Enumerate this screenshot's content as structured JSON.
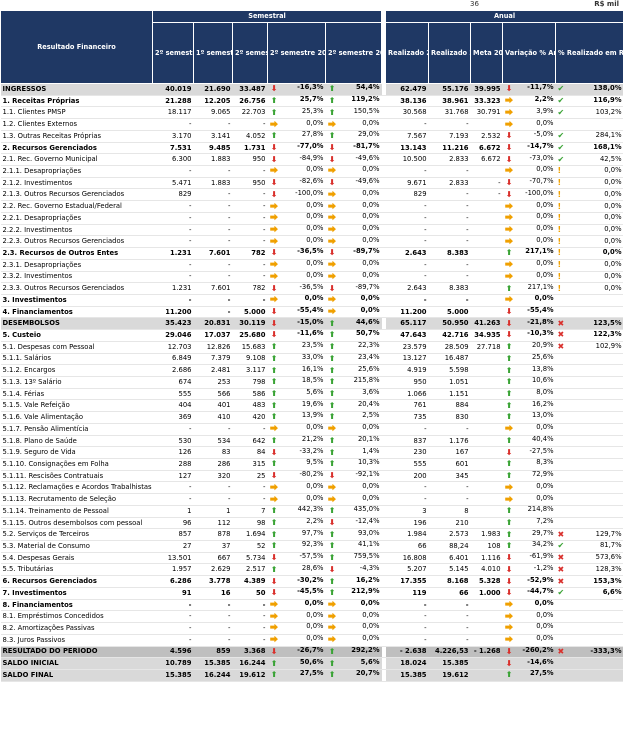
{
  "top": {
    "marker": "36",
    "unit": "R$ mil"
  },
  "header": {
    "name_col": "Resultado Financeiro",
    "group_sem": "Semestral",
    "group_anual": "Anual",
    "cols": [
      "2º semestre 2015",
      "1º semestre 2016",
      "2º semestre 2016",
      "2º semestre 2016 vs 2º semestre 2015",
      "2º semestre 2016 vs 1º semestre 2016",
      "Realizado 2015",
      "Realizado 2016",
      "Meta 2016",
      "Variação % Anual",
      "% Realizado em Relação à Meta"
    ]
  },
  "rows": [
    {
      "name": "INGRESSOS",
      "s1": "40.019",
      "s2": "21.690",
      "s3": "33.487",
      "a1": "down",
      "v1": "-16,3%",
      "a2": "up",
      "v2": "54,4%",
      "r15": "62.479",
      "r16": "55.176",
      "meta": "39.995",
      "a3": "down",
      "v3": "-11,7%",
      "mk": "ok",
      "pm": "138,0%",
      "style": "band"
    },
    {
      "name": "1. Receitas Próprias",
      "s1": "21.288",
      "s2": "12.205",
      "s3": "26.756",
      "a1": "up",
      "v1": "25,7%",
      "a2": "up",
      "v2": "119,2%",
      "r15": "38.136",
      "r16": "38.961",
      "meta": "33.323",
      "a3": "right",
      "v3": "2,2%",
      "mk": "ok",
      "pm": "116,9%",
      "style": "bold"
    },
    {
      "name": "1.1. Clientes PMSP",
      "s1": "18.117",
      "s2": "9.065",
      "s3": "22.703",
      "a1": "up",
      "v1": "25,3%",
      "a2": "up",
      "v2": "150,5%",
      "r15": "30.568",
      "r16": "31.768",
      "meta": "30.791",
      "a3": "right",
      "v3": "3,9%",
      "mk": "ok",
      "pm": "103,2%",
      "style": ""
    },
    {
      "name": "1.2. Clientes Externos",
      "s1": "-",
      "s2": "-",
      "s3": "-",
      "a1": "right",
      "v1": "0,0%",
      "a2": "right",
      "v2": "0,0%",
      "r15": "-",
      "r16": "-",
      "meta": "",
      "a3": "right",
      "v3": "0,0%",
      "mk": "",
      "pm": "",
      "style": ""
    },
    {
      "name": "1.3. Outras Receitas Próprias",
      "s1": "3.170",
      "s2": "3.141",
      "s3": "4.052",
      "a1": "up",
      "v1": "27,8%",
      "a2": "up",
      "v2": "29,0%",
      "r15": "7.567",
      "r16": "7.193",
      "meta": "2.532",
      "a3": "down",
      "v3": "-5,0%",
      "mk": "ok",
      "pm": "284,1%",
      "style": ""
    },
    {
      "name": "2. Recursos Gerenciados",
      "s1": "7.531",
      "s2": "9.485",
      "s3": "1.731",
      "a1": "down",
      "v1": "-77,0%",
      "a2": "down",
      "v2": "-81,7%",
      "r15": "13.143",
      "r16": "11.216",
      "meta": "6.672",
      "a3": "down",
      "v3": "-14,7%",
      "mk": "ok",
      "pm": "168,1%",
      "style": "bold"
    },
    {
      "name": "2.1. Rec. Governo Municipal",
      "s1": "6.300",
      "s2": "1.883",
      "s3": "950",
      "a1": "down",
      "v1": "-84,9%",
      "a2": "down",
      "v2": "-49,6%",
      "r15": "10.500",
      "r16": "2.833",
      "meta": "6.672",
      "a3": "down",
      "v3": "-73,0%",
      "mk": "ok",
      "pm": "42,5%",
      "style": ""
    },
    {
      "name": "2.1.1. Desapropriações",
      "s1": "-",
      "s2": "-",
      "s3": "-",
      "a1": "right",
      "v1": "0,0%",
      "a2": "right",
      "v2": "0,0%",
      "r15": "-",
      "r16": "-",
      "meta": "",
      "a3": "right",
      "v3": "0,0%",
      "mk": "ex",
      "pm": "0,0%",
      "style": ""
    },
    {
      "name": "2.1.2. Investimentos",
      "s1": "5.471",
      "s2": "1.883",
      "s3": "950",
      "a1": "down",
      "v1": "-82,6%",
      "a2": "down",
      "v2": "-49,6%",
      "r15": "9.671",
      "r16": "2.833",
      "meta": "-",
      "a3": "down",
      "v3": "-70,7%",
      "mk": "ex",
      "pm": "0,0%",
      "style": ""
    },
    {
      "name": "2.1.3. Outros Recursos Gerenciados",
      "s1": "829",
      "s2": "-",
      "s3": "-",
      "a1": "down",
      "v1": "-100,0%",
      "a2": "right",
      "v2": "0,0%",
      "r15": "829",
      "r16": "-",
      "meta": "-",
      "a3": "down",
      "v3": "-100,0%",
      "mk": "ex",
      "pm": "0,0%",
      "style": ""
    },
    {
      "name": "2.2. Rec. Governo Estadual/Federal",
      "s1": "-",
      "s2": "-",
      "s3": "-",
      "a1": "right",
      "v1": "0,0%",
      "a2": "right",
      "v2": "0,0%",
      "r15": "-",
      "r16": "-",
      "meta": "",
      "a3": "right",
      "v3": "0,0%",
      "mk": "ex",
      "pm": "0,0%",
      "style": ""
    },
    {
      "name": "2.2.1. Desapropriações",
      "s1": "-",
      "s2": "-",
      "s3": "-",
      "a1": "right",
      "v1": "0,0%",
      "a2": "right",
      "v2": "0,0%",
      "r15": "-",
      "r16": "-",
      "meta": "",
      "a3": "right",
      "v3": "0,0%",
      "mk": "ex",
      "pm": "0,0%",
      "style": ""
    },
    {
      "name": "2.2.2. Investimentos",
      "s1": "-",
      "s2": "-",
      "s3": "-",
      "a1": "right",
      "v1": "0,0%",
      "a2": "right",
      "v2": "0,0%",
      "r15": "-",
      "r16": "-",
      "meta": "",
      "a3": "right",
      "v3": "0,0%",
      "mk": "ex",
      "pm": "0,0%",
      "style": ""
    },
    {
      "name": "2.2.3. Outros Recursos Gerenciados",
      "s1": "-",
      "s2": "-",
      "s3": "-",
      "a1": "right",
      "v1": "0,0%",
      "a2": "right",
      "v2": "0,0%",
      "r15": "-",
      "r16": "-",
      "meta": "",
      "a3": "right",
      "v3": "0,0%",
      "mk": "ex",
      "pm": "0,0%",
      "style": ""
    },
    {
      "name": "2.3. Recursos de Outros Entes",
      "s1": "1.231",
      "s2": "7.601",
      "s3": "782",
      "a1": "down",
      "v1": "-36,5%",
      "a2": "down",
      "v2": "-89,7%",
      "r15": "2.643",
      "r16": "8.383",
      "meta": "",
      "a3": "up",
      "v3": "217,1%",
      "mk": "ex",
      "pm": "0,0%",
      "style": "bold2"
    },
    {
      "name": "2.3.1. Desapropriações",
      "s1": "-",
      "s2": "-",
      "s3": "-",
      "a1": "right",
      "v1": "0,0%",
      "a2": "right",
      "v2": "0,0%",
      "r15": "-",
      "r16": "-",
      "meta": "",
      "a3": "right",
      "v3": "0,0%",
      "mk": "ex",
      "pm": "0,0%",
      "style": ""
    },
    {
      "name": "2.3.2. Investimentos",
      "s1": "-",
      "s2": "-",
      "s3": "-",
      "a1": "right",
      "v1": "0,0%",
      "a2": "right",
      "v2": "0,0%",
      "r15": "-",
      "r16": "-",
      "meta": "",
      "a3": "right",
      "v3": "0,0%",
      "mk": "ex",
      "pm": "0,0%",
      "style": ""
    },
    {
      "name": "2.3.3. Outros Recursos Gerenciados",
      "s1": "1.231",
      "s2": "7.601",
      "s3": "782",
      "a1": "down",
      "v1": "-36,5%",
      "a2": "down",
      "v2": "-89,7%",
      "r15": "2.643",
      "r16": "8.383",
      "meta": "",
      "a3": "up",
      "v3": "217,1%",
      "mk": "ex",
      "pm": "0,0%",
      "style": ""
    },
    {
      "name": "3. Investimentos",
      "s1": "-",
      "s2": "-",
      "s3": "-",
      "a1": "right",
      "v1": "0,0%",
      "a2": "right",
      "v2": "0,0%",
      "r15": "-",
      "r16": "-",
      "meta": "",
      "a3": "right",
      "v3": "0,0%",
      "mk": "",
      "pm": "",
      "style": "bold"
    },
    {
      "name": "4. Financiamentos",
      "s1": "11.200",
      "s2": "-",
      "s3": "5.000",
      "a1": "down",
      "v1": "-55,4%",
      "a2": "right",
      "v2": "0,0%",
      "r15": "11.200",
      "r16": "5.000",
      "meta": "",
      "a3": "down",
      "v3": "-55,4%",
      "mk": "",
      "pm": "",
      "style": "bold"
    },
    {
      "name": "DESEMBOLSOS",
      "s1": "35.423",
      "s2": "20.831",
      "s3": "30.119",
      "a1": "down",
      "v1": "-15,0%",
      "a2": "up",
      "v2": "44,6%",
      "r15": "65.117",
      "r16": "50.950",
      "meta": "41.263",
      "a3": "down",
      "v3": "-21,8%",
      "mk": "no",
      "pm": "123,5%",
      "style": "band"
    },
    {
      "name": "5. Custeio",
      "s1": "29.046",
      "s2": "17.037",
      "s3": "25.680",
      "a1": "down",
      "v1": "-11,6%",
      "a2": "up",
      "v2": "50,7%",
      "r15": "47.643",
      "r16": "42.716",
      "meta": "34.935",
      "a3": "down",
      "v3": "-10,3%",
      "mk": "no",
      "pm": "122,3%",
      "style": "bold"
    },
    {
      "name": "5.1. Despesas com Pessoal",
      "s1": "12.703",
      "s2": "12.826",
      "s3": "15.683",
      "a1": "up",
      "v1": "23,5%",
      "a2": "up",
      "v2": "22,3%",
      "r15": "23.579",
      "r16": "28.509",
      "meta": "27.718",
      "a3": "up",
      "v3": "20,9%",
      "mk": "no",
      "pm": "102,9%",
      "style": ""
    },
    {
      "name": "5.1.1. Salários",
      "s1": "6.849",
      "s2": "7.379",
      "s3": "9.108",
      "a1": "up",
      "v1": "33,0%",
      "a2": "up",
      "v2": "23,4%",
      "r15": "13.127",
      "r16": "16.487",
      "meta": "",
      "a3": "up",
      "v3": "25,6%",
      "mk": "",
      "pm": "",
      "style": ""
    },
    {
      "name": "5.1.2. Encargos",
      "s1": "2.686",
      "s2": "2.481",
      "s3": "3.117",
      "a1": "up",
      "v1": "16,1%",
      "a2": "up",
      "v2": "25,6%",
      "r15": "4.919",
      "r16": "5.598",
      "meta": "",
      "a3": "up",
      "v3": "13,8%",
      "mk": "",
      "pm": "",
      "style": ""
    },
    {
      "name": "5.1.3. 13º Salário",
      "s1": "674",
      "s2": "253",
      "s3": "798",
      "a1": "up",
      "v1": "18,5%",
      "a2": "up",
      "v2": "215,8%",
      "r15": "950",
      "r16": "1.051",
      "meta": "",
      "a3": "up",
      "v3": "10,6%",
      "mk": "",
      "pm": "",
      "style": ""
    },
    {
      "name": "5.1.4. Férias",
      "s1": "555",
      "s2": "566",
      "s3": "586",
      "a1": "up",
      "v1": "5,6%",
      "a2": "up",
      "v2": "3,6%",
      "r15": "1.066",
      "r16": "1.151",
      "meta": "",
      "a3": "up",
      "v3": "8,0%",
      "mk": "",
      "pm": "",
      "style": ""
    },
    {
      "name": "5.1.5. Vale Refeição",
      "s1": "404",
      "s2": "401",
      "s3": "483",
      "a1": "up",
      "v1": "19,6%",
      "a2": "up",
      "v2": "20,4%",
      "r15": "761",
      "r16": "884",
      "meta": "",
      "a3": "up",
      "v3": "16,2%",
      "mk": "",
      "pm": "",
      "style": ""
    },
    {
      "name": "5.1.6. Vale Alimentação",
      "s1": "369",
      "s2": "410",
      "s3": "420",
      "a1": "up",
      "v1": "13,9%",
      "a2": "up",
      "v2": "2,5%",
      "r15": "735",
      "r16": "830",
      "meta": "",
      "a3": "up",
      "v3": "13,0%",
      "mk": "",
      "pm": "",
      "style": ""
    },
    {
      "name": "5.1.7. Pensão Alimentícia",
      "s1": "-",
      "s2": "-",
      "s3": "-",
      "a1": "right",
      "v1": "0,0%",
      "a2": "right",
      "v2": "0,0%",
      "r15": "-",
      "r16": "-",
      "meta": "",
      "a3": "right",
      "v3": "0,0%",
      "mk": "",
      "pm": "",
      "style": ""
    },
    {
      "name": "5.1.8. Plano de Saúde",
      "s1": "530",
      "s2": "534",
      "s3": "642",
      "a1": "up",
      "v1": "21,2%",
      "a2": "up",
      "v2": "20,1%",
      "r15": "837",
      "r16": "1.176",
      "meta": "",
      "a3": "up",
      "v3": "40,4%",
      "mk": "",
      "pm": "",
      "style": ""
    },
    {
      "name": "5.1.9. Seguro de Vida",
      "s1": "126",
      "s2": "83",
      "s3": "84",
      "a1": "down",
      "v1": "-33,2%",
      "a2": "up",
      "v2": "1,4%",
      "r15": "230",
      "r16": "167",
      "meta": "",
      "a3": "down",
      "v3": "-27,5%",
      "mk": "",
      "pm": "",
      "style": ""
    },
    {
      "name": "5.1.10. Consignações em Folha",
      "s1": "288",
      "s2": "286",
      "s3": "315",
      "a1": "up",
      "v1": "9,5%",
      "a2": "up",
      "v2": "10,3%",
      "r15": "555",
      "r16": "601",
      "meta": "",
      "a3": "up",
      "v3": "8,3%",
      "mk": "",
      "pm": "",
      "style": ""
    },
    {
      "name": "5.1.11. Rescisões Contratuais",
      "s1": "127",
      "s2": "320",
      "s3": "25",
      "a1": "down",
      "v1": "-80,2%",
      "a2": "down",
      "v2": "-92,1%",
      "r15": "200",
      "r16": "345",
      "meta": "",
      "a3": "up",
      "v3": "72,9%",
      "mk": "",
      "pm": "",
      "style": ""
    },
    {
      "name": "5.1.12. Reclamações e Acordos Trabalhistas",
      "s1": "-",
      "s2": "-",
      "s3": "-",
      "a1": "right",
      "v1": "0,0%",
      "a2": "right",
      "v2": "0,0%",
      "r15": "-",
      "r16": "-",
      "meta": "",
      "a3": "right",
      "v3": "0,0%",
      "mk": "",
      "pm": "",
      "style": ""
    },
    {
      "name": "5.1.13. Recrutamento de Seleção",
      "s1": "-",
      "s2": "-",
      "s3": "-",
      "a1": "right",
      "v1": "0,0%",
      "a2": "right",
      "v2": "0,0%",
      "r15": "-",
      "r16": "-",
      "meta": "",
      "a3": "right",
      "v3": "0,0%",
      "mk": "",
      "pm": "",
      "style": ""
    },
    {
      "name": "5.1.14. Treinamento de Pessoal",
      "s1": "1",
      "s2": "1",
      "s3": "7",
      "a1": "up",
      "v1": "442,3%",
      "a2": "up",
      "v2": "435,0%",
      "r15": "3",
      "r16": "8",
      "meta": "",
      "a3": "up",
      "v3": "214,8%",
      "mk": "",
      "pm": "",
      "style": ""
    },
    {
      "name": "5.1.15. Outros desembolsos com pessoal",
      "s1": "96",
      "s2": "112",
      "s3": "98",
      "a1": "up",
      "v1": "2,2%",
      "a2": "down",
      "v2": "-12,4%",
      "r15": "196",
      "r16": "210",
      "meta": "",
      "a3": "up",
      "v3": "7,2%",
      "mk": "",
      "pm": "",
      "style": ""
    },
    {
      "name": "5.2. Serviços de Terceiros",
      "s1": "857",
      "s2": "878",
      "s3": "1.694",
      "a1": "up",
      "v1": "97,7%",
      "a2": "up",
      "v2": "93,0%",
      "r15": "1.984",
      "r16": "2.573",
      "meta": "1.983",
      "a3": "up",
      "v3": "29,7%",
      "mk": "no",
      "pm": "129,7%",
      "style": ""
    },
    {
      "name": "5.3. Material de Consumo",
      "s1": "27",
      "s2": "37",
      "s3": "52",
      "a1": "up",
      "v1": "92,3%",
      "a2": "up",
      "v2": "41,1%",
      "r15": "66",
      "r16": "88,24",
      "meta": "108",
      "a3": "up",
      "v3": "34,2%",
      "mk": "ok",
      "pm": "81,7%",
      "style": ""
    },
    {
      "name": "5.4. Despesas Gerais",
      "s1": "13.501",
      "s2": "667",
      "s3": "5.734",
      "a1": "down",
      "v1": "-57,5%",
      "a2": "up",
      "v2": "759,5%",
      "r15": "16.808",
      "r16": "6.401",
      "meta": "1.116",
      "a3": "down",
      "v3": "-61,9%",
      "mk": "no",
      "pm": "573,6%",
      "style": ""
    },
    {
      "name": "5.5. Tributárias",
      "s1": "1.957",
      "s2": "2.629",
      "s3": "2.517",
      "a1": "up",
      "v1": "28,6%",
      "a2": "down",
      "v2": "-4,3%",
      "r15": "5.207",
      "r16": "5.145",
      "meta": "4.010",
      "a3": "down",
      "v3": "-1,2%",
      "mk": "no",
      "pm": "128,3%",
      "style": ""
    },
    {
      "name": "6. Recursos Gerenciados",
      "s1": "6.286",
      "s2": "3.778",
      "s3": "4.389",
      "a1": "down",
      "v1": "-30,2%",
      "a2": "up",
      "v2": "16,2%",
      "r15": "17.355",
      "r16": "8.168",
      "meta": "5.328",
      "a3": "down",
      "v3": "-52,9%",
      "mk": "no",
      "pm": "153,3%",
      "style": "bold"
    },
    {
      "name": "7. Investimentos",
      "s1": "91",
      "s2": "16",
      "s3": "50",
      "a1": "down",
      "v1": "-45,5%",
      "a2": "up",
      "v2": "212,9%",
      "r15": "119",
      "r16": "66",
      "meta": "1.000",
      "a3": "down",
      "v3": "-44,7%",
      "mk": "ok",
      "pm": "6,6%",
      "style": "bold"
    },
    {
      "name": "8. Financiamentos",
      "s1": "-",
      "s2": "-",
      "s3": "-",
      "a1": "right",
      "v1": "0,0%",
      "a2": "right",
      "v2": "0,0%",
      "r15": "-",
      "r16": "-",
      "meta": "",
      "a3": "right",
      "v3": "0,0%",
      "mk": "",
      "pm": "",
      "style": "bold"
    },
    {
      "name": "8.1. Empréstimos Concedidos",
      "s1": "-",
      "s2": "-",
      "s3": "-",
      "a1": "right",
      "v1": "0,0%",
      "a2": "right",
      "v2": "0,0%",
      "r15": "-",
      "r16": "-",
      "meta": "",
      "a3": "right",
      "v3": "0,0%",
      "mk": "",
      "pm": "",
      "style": ""
    },
    {
      "name": "8.2. Amortizações Passivas",
      "s1": "-",
      "s2": "-",
      "s3": "-",
      "a1": "right",
      "v1": "0,0%",
      "a2": "right",
      "v2": "0,0%",
      "r15": "-",
      "r16": "-",
      "meta": "",
      "a3": "right",
      "v3": "0,0%",
      "mk": "",
      "pm": "",
      "style": ""
    },
    {
      "name": "8.3. Juros Passivos",
      "s1": "-",
      "s2": "-",
      "s3": "-",
      "a1": "right",
      "v1": "0,0%",
      "a2": "right",
      "v2": "0,0%",
      "r15": "-",
      "r16": "-",
      "meta": "",
      "a3": "right",
      "v3": "0,0%",
      "mk": "",
      "pm": "",
      "style": ""
    },
    {
      "name": "RESULTADO DO PERÍODO",
      "s1": "4.596",
      "s2": "859",
      "s3": "3.368",
      "a1": "down",
      "v1": "-26,7%",
      "a2": "up",
      "v2": "292,2%",
      "r15": "- 2.638",
      "r16": "4.226,53",
      "meta": "- 1.268",
      "a3": "down",
      "v3": "-260,2%",
      "mk": "no",
      "pm": "-333,3%",
      "style": "res"
    },
    {
      "name": "SALDO INICIAL",
      "s1": "10.789",
      "s2": "15.385",
      "s3": "16.244",
      "a1": "up",
      "v1": "50,6%",
      "a2": "up",
      "v2": "5,6%",
      "r15": "18.024",
      "r16": "15.385",
      "meta": "",
      "a3": "down",
      "v3": "-14,6%",
      "mk": "",
      "pm": "",
      "style": "saldo"
    },
    {
      "name": "SALDO FINAL",
      "s1": "15.385",
      "s2": "16.244",
      "s3": "19.612",
      "a1": "up",
      "v1": "27,5%",
      "a2": "up",
      "v2": "20,7%",
      "r15": "15.385",
      "r16": "19.612",
      "meta": "",
      "a3": "up",
      "v3": "27,5%",
      "mk": "",
      "pm": "",
      "style": "saldo"
    }
  ]
}
